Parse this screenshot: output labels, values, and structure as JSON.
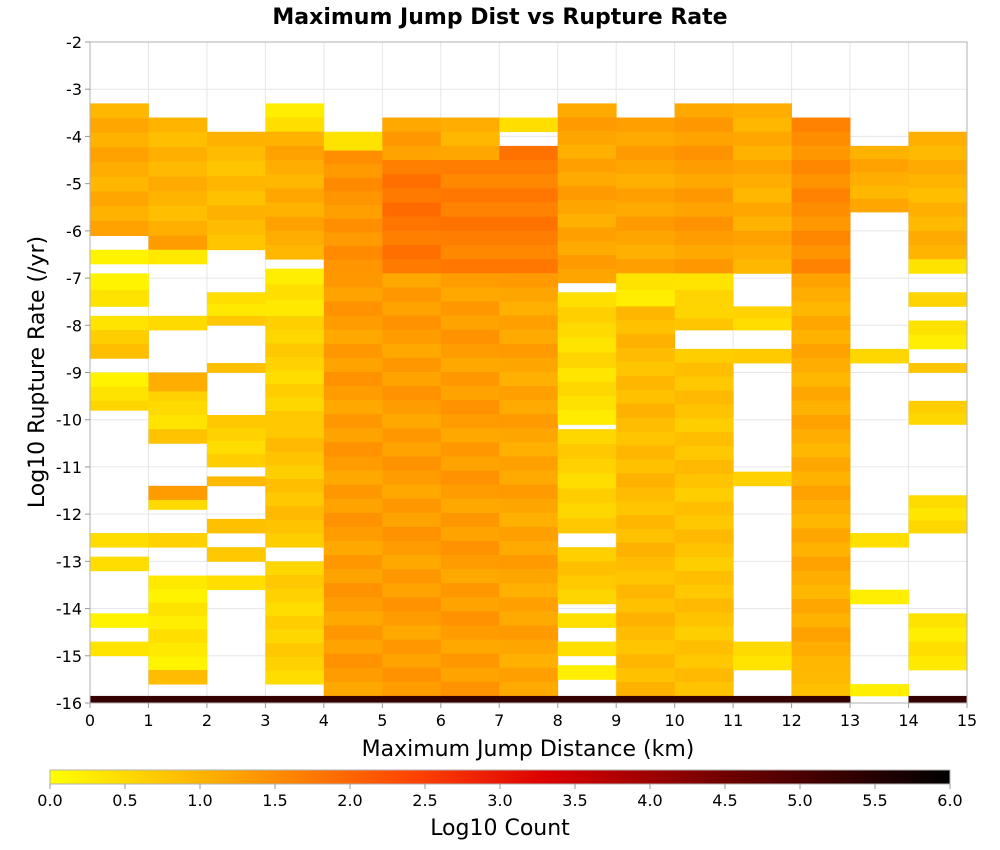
{
  "chart_data": {
    "type": "heatmap",
    "title": "Maximum Jump Dist vs Rupture Rate",
    "xlabel": "Maximum Jump Distance (km)",
    "ylabel": "Log10 Rupture Rate (/yr)",
    "xlim": [
      0,
      15
    ],
    "ylim": [
      -16,
      -2
    ],
    "x_ticks": [
      "0",
      "1",
      "2",
      "3",
      "4",
      "5",
      "6",
      "7",
      "8",
      "9",
      "10",
      "11",
      "12",
      "13",
      "14",
      "15"
    ],
    "y_ticks": [
      "-2",
      "-3",
      "-4",
      "-5",
      "-6",
      "-7",
      "-8",
      "-9",
      "-10",
      "-11",
      "-12",
      "-13",
      "-14",
      "-15",
      "-16"
    ],
    "bin_height": 0.3,
    "grid": true,
    "colorbar": {
      "label": "Log10 Count",
      "range": [
        0,
        6
      ],
      "ticks": [
        "0.0",
        "0.5",
        "1.0",
        "1.5",
        "2.0",
        "2.5",
        "3.0",
        "3.5",
        "4.0",
        "4.5",
        "5.0",
        "5.5",
        "6.0"
      ],
      "colors": [
        "#ffff00",
        "#ffa500",
        "#ff4500",
        "#dd0000",
        "#700000",
        "#000000"
      ]
    },
    "columns": [
      {
        "x": 0,
        "segments": [
          [
            -3.3,
            -6.1,
            1.1
          ],
          [
            -6.4,
            -6.7,
            0.3
          ],
          [
            -6.9,
            -7.6,
            0.3
          ],
          [
            -7.8,
            -8.1,
            0.5
          ],
          [
            -8.1,
            -8.7,
            0.8
          ],
          [
            -9.0,
            -9.6,
            0.3
          ],
          [
            -9.6,
            -9.8,
            0.7
          ],
          [
            -12.4,
            -12.7,
            0.6
          ],
          [
            -12.9,
            -13.2,
            0.6
          ],
          [
            -14.1,
            -14.4,
            0.3
          ],
          [
            -14.7,
            -15.0,
            0.5
          ],
          [
            -15.85,
            -16.0,
            5.3
          ]
        ]
      },
      {
        "x": 1,
        "segments": [
          [
            -3.6,
            -6.1,
            1.0
          ],
          [
            -6.1,
            -6.4,
            1.3
          ],
          [
            -6.4,
            -6.7,
            0.3
          ],
          [
            -7.8,
            -8.1,
            0.5
          ],
          [
            -9.0,
            -9.4,
            1.1
          ],
          [
            -9.4,
            -9.6,
            0.6
          ],
          [
            -9.6,
            -10.2,
            0.5
          ],
          [
            -10.2,
            -10.5,
            0.8
          ],
          [
            -11.4,
            -11.7,
            1.3
          ],
          [
            -11.7,
            -11.9,
            0.5
          ],
          [
            -12.4,
            -12.7,
            0.6
          ],
          [
            -13.3,
            -15.3,
            0.3
          ],
          [
            -15.3,
            -15.6,
            0.9
          ],
          [
            -15.85,
            -16.0,
            5.3
          ]
        ]
      },
      {
        "x": 2,
        "segments": [
          [
            -3.9,
            -6.4,
            0.9
          ],
          [
            -7.3,
            -7.8,
            0.3
          ],
          [
            -7.8,
            -8.0,
            0.6
          ],
          [
            -8.8,
            -9.0,
            0.7
          ],
          [
            -9.9,
            -11.0,
            0.6
          ],
          [
            -11.2,
            -11.4,
            0.8
          ],
          [
            -12.1,
            -12.4,
            0.7
          ],
          [
            -12.7,
            -13.0,
            0.6
          ],
          [
            -13.3,
            -13.6,
            0.3
          ],
          [
            -15.85,
            -16.0,
            5.3
          ]
        ]
      },
      {
        "x": 3,
        "segments": [
          [
            -3.3,
            -3.9,
            0.3
          ],
          [
            -3.9,
            -6.6,
            1.1
          ],
          [
            -6.8,
            -7.8,
            0.3
          ],
          [
            -7.8,
            -8.1,
            0.7
          ],
          [
            -8.1,
            -10.1,
            0.6
          ],
          [
            -10.1,
            -12.7,
            0.8
          ],
          [
            -13.0,
            -15.6,
            0.6
          ],
          [
            -15.85,
            -16.0,
            5.3
          ]
        ]
      },
      {
        "x": 4,
        "segments": [
          [
            -3.9,
            -4.3,
            0.3
          ],
          [
            -4.3,
            -6.9,
            1.4
          ],
          [
            -6.9,
            -15.85,
            1.3
          ],
          [
            -15.85,
            -16.0,
            5.3
          ]
        ]
      },
      {
        "x": 5,
        "segments": [
          [
            -3.6,
            -4.5,
            1.3
          ],
          [
            -4.5,
            -6.9,
            1.8
          ],
          [
            -6.9,
            -15.85,
            1.3
          ],
          [
            -15.85,
            -16.0,
            5.3
          ]
        ]
      },
      {
        "x": 6,
        "segments": [
          [
            -3.6,
            -4.5,
            1.1
          ],
          [
            -4.5,
            -6.9,
            1.7
          ],
          [
            -6.9,
            -15.85,
            1.3
          ],
          [
            -15.85,
            -16.0,
            5.3
          ]
        ]
      },
      {
        "x": 7,
        "segments": [
          [
            -3.6,
            -3.9,
            0.3
          ],
          [
            -4.2,
            -6.9,
            1.7
          ],
          [
            -6.9,
            -15.85,
            1.2
          ],
          [
            -15.85,
            -16.0,
            5.3
          ]
        ]
      },
      {
        "x": 8,
        "segments": [
          [
            -3.3,
            -7.1,
            1.2
          ],
          [
            -7.3,
            -8.9,
            0.5
          ],
          [
            -8.9,
            -10.1,
            0.4
          ],
          [
            -10.2,
            -12.4,
            0.6
          ],
          [
            -12.7,
            -13.9,
            0.7
          ],
          [
            -14.1,
            -14.4,
            0.5
          ],
          [
            -14.7,
            -15.0,
            0.5
          ],
          [
            -15.2,
            -15.5,
            0.3
          ],
          [
            -15.85,
            -16.0,
            5.3
          ]
        ]
      },
      {
        "x": 9,
        "segments": [
          [
            -3.6,
            -6.9,
            1.2
          ],
          [
            -6.9,
            -7.6,
            0.3
          ],
          [
            -7.6,
            -15.85,
            0.9
          ],
          [
            -15.85,
            -16.0,
            5.3
          ]
        ]
      },
      {
        "x": 10,
        "segments": [
          [
            -3.3,
            -6.9,
            1.3
          ],
          [
            -6.9,
            -7.6,
            0.5
          ],
          [
            -7.6,
            -8.1,
            0.7
          ],
          [
            -8.5,
            -15.85,
            0.8
          ],
          [
            -15.85,
            -16.0,
            5.3
          ]
        ]
      },
      {
        "x": 11,
        "segments": [
          [
            -3.3,
            -6.9,
            1.1
          ],
          [
            -7.6,
            -8.1,
            0.6
          ],
          [
            -8.5,
            -8.8,
            0.7
          ],
          [
            -11.1,
            -11.4,
            0.6
          ],
          [
            -14.7,
            -15.3,
            0.5
          ],
          [
            -15.85,
            -16.0,
            5.3
          ]
        ]
      },
      {
        "x": 12,
        "segments": [
          [
            -3.6,
            -6.9,
            1.5
          ],
          [
            -6.9,
            -15.3,
            1.1
          ],
          [
            -15.3,
            -15.6,
            0.8
          ],
          [
            -15.6,
            -15.85,
            0.7
          ],
          [
            -15.85,
            -16.0,
            5.3
          ]
        ]
      },
      {
        "x": 13,
        "segments": [
          [
            -4.2,
            -5.6,
            1.1
          ],
          [
            -8.5,
            -8.8,
            0.6
          ],
          [
            -12.4,
            -12.7,
            0.5
          ],
          [
            -13.6,
            -13.9,
            0.3
          ],
          [
            -15.6,
            -15.85,
            0.3
          ]
        ]
      },
      {
        "x": 14,
        "segments": [
          [
            -3.9,
            -6.6,
            1.0
          ],
          [
            -6.6,
            -6.9,
            0.3
          ],
          [
            -7.3,
            -7.6,
            0.5
          ],
          [
            -7.9,
            -8.5,
            0.3
          ],
          [
            -8.8,
            -9.0,
            0.7
          ],
          [
            -9.6,
            -10.1,
            0.6
          ],
          [
            -11.6,
            -12.4,
            0.4
          ],
          [
            -14.1,
            -15.3,
            0.3
          ],
          [
            -15.85,
            -16.0,
            5.3
          ]
        ]
      }
    ]
  }
}
